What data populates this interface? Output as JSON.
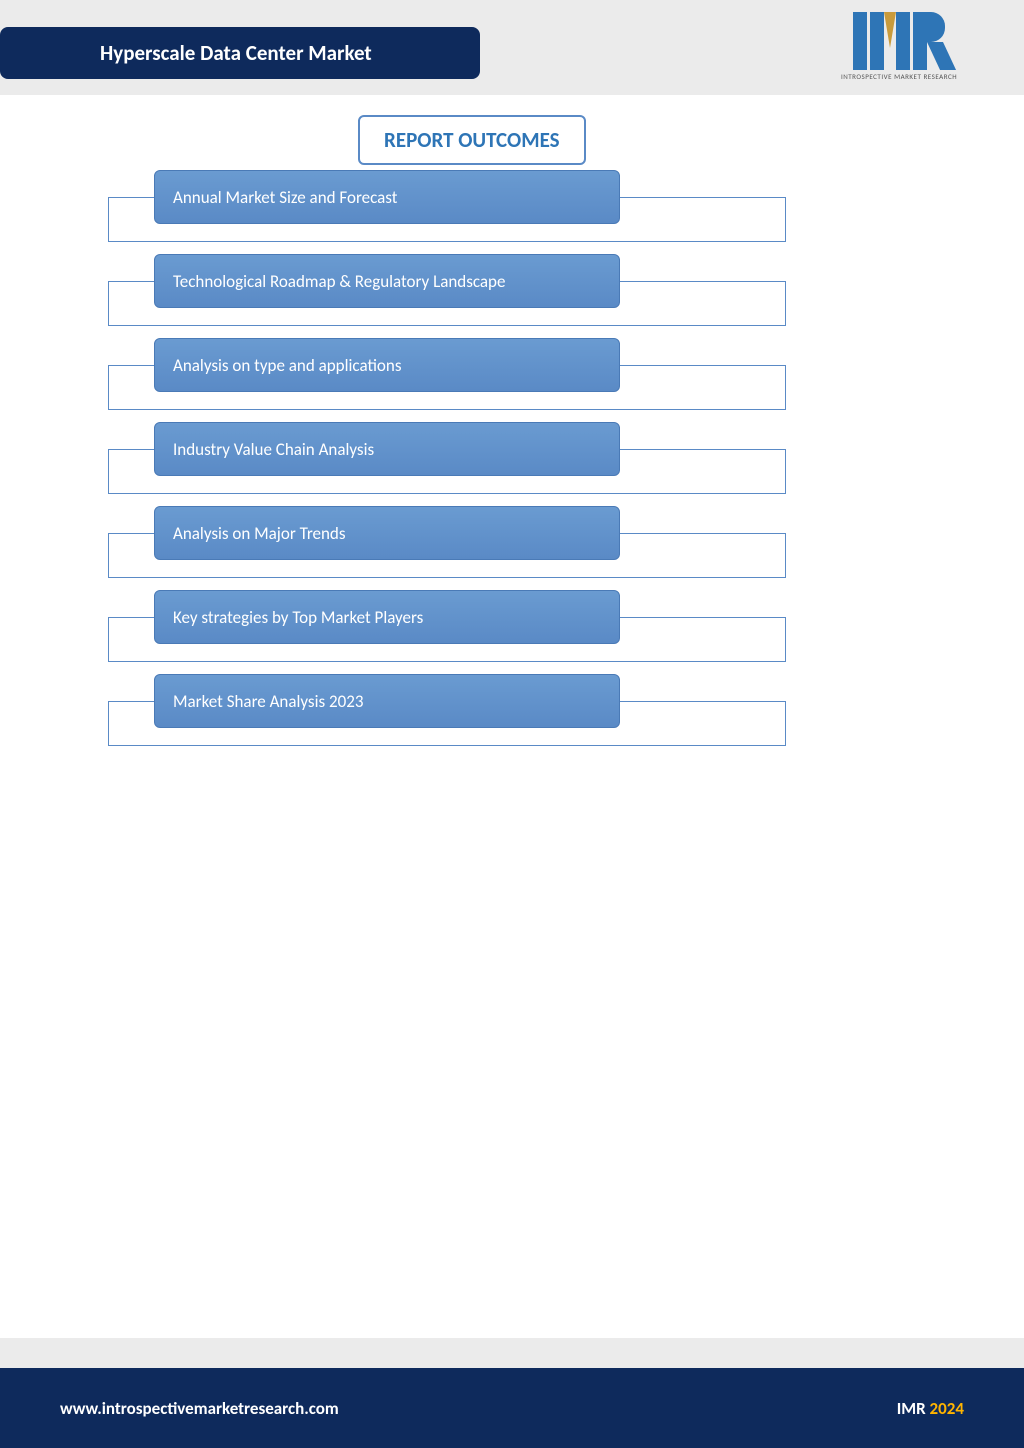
{
  "header": {
    "title": "Hyperscale Data Center Market",
    "title_bg": "#0e2a5c",
    "title_color": "#ffffff",
    "band_bg": "#ebebeb",
    "logo_tagline": "INTROSPECTIVE MARKET RESEARCH",
    "logo_blue": "#2e75b6",
    "logo_gold": "#c89b3c"
  },
  "section": {
    "heading": "REPORT OUTCOMES",
    "heading_color": "#2e75b6",
    "heading_border": "#5a8ac6"
  },
  "outcomes": {
    "pill_bg_top": "#6a9bd1",
    "pill_bg_bottom": "#5a8ac6",
    "pill_text_color": "#ffffff",
    "box_border": "#5a8ac6",
    "items": [
      {
        "label": "Annual Market Size and Forecast"
      },
      {
        "label": "Technological Roadmap & Regulatory Landscape"
      },
      {
        "label": "Analysis on type and applications"
      },
      {
        "label": "Industry Value Chain Analysis"
      },
      {
        "label": "Analysis on Major Trends"
      },
      {
        "label": "Key strategies by Top Market Players"
      },
      {
        "label": "Market Share Analysis 2023"
      }
    ]
  },
  "footer": {
    "url": "www.introspectivemarketresearch.com",
    "brand": "IMR",
    "year": "2024",
    "bg": "#0e2a5c",
    "top_bg": "#ebebeb",
    "year_color": "#ffb400"
  }
}
